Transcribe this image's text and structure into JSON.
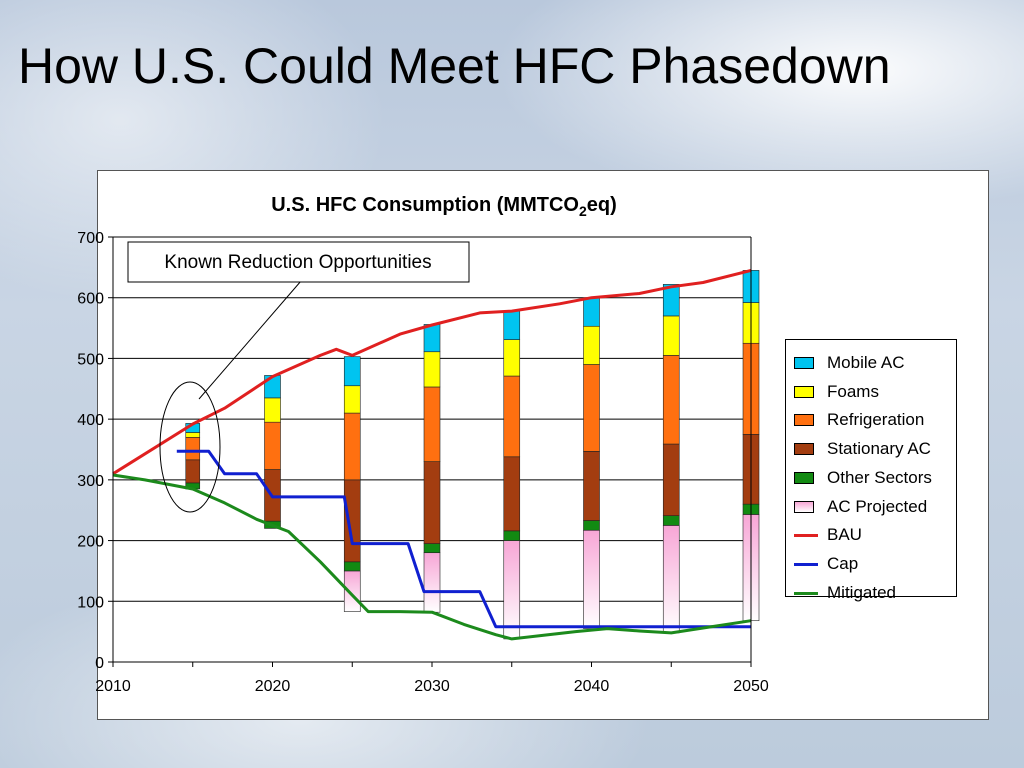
{
  "slide": {
    "title": "How U.S. Could Meet HFC Phasedown"
  },
  "chart_data": {
    "type": "bar",
    "title_main": "U.S. HFC Consumption (MMTCO",
    "title_sub": "2",
    "title_tail": "eq)",
    "annotation": "Known Reduction Opportunities",
    "xlim": [
      2010,
      2050
    ],
    "ylim": [
      0,
      700
    ],
    "x_ticks": [
      2010,
      2020,
      2030,
      2040,
      2050
    ],
    "y_ticks": [
      0,
      100,
      200,
      300,
      400,
      500,
      600,
      700
    ],
    "grid": true,
    "legend_position": "right",
    "stack_order": [
      "AC Projected",
      "Other Sectors",
      "Stationary AC",
      "Refrigeration",
      "Foams",
      "Mobile AC"
    ],
    "bars": [
      {
        "x": 2015,
        "base": 285,
        "AC Projected": 0,
        "Other Sectors": 10,
        "Stationary AC": 38,
        "Refrigeration": 37,
        "Foams": 8,
        "Mobile AC": 15
      },
      {
        "x": 2020,
        "base": 220,
        "AC Projected": 0,
        "Other Sectors": 12,
        "Stationary AC": 85,
        "Refrigeration": 78,
        "Foams": 40,
        "Mobile AC": 37
      },
      {
        "x": 2025,
        "base": 83,
        "AC Projected": 67,
        "Other Sectors": 15,
        "Stationary AC": 135,
        "Refrigeration": 110,
        "Foams": 45,
        "Mobile AC": 48
      },
      {
        "x": 2030,
        "base": 82,
        "AC Projected": 98,
        "Other Sectors": 15,
        "Stationary AC": 135,
        "Refrigeration": 123,
        "Foams": 58,
        "Mobile AC": 45
      },
      {
        "x": 2035,
        "base": 38,
        "AC Projected": 162,
        "Other Sectors": 16,
        "Stationary AC": 122,
        "Refrigeration": 133,
        "Foams": 60,
        "Mobile AC": 47
      },
      {
        "x": 2040,
        "base": 55,
        "AC Projected": 162,
        "Other Sectors": 16,
        "Stationary AC": 114,
        "Refrigeration": 143,
        "Foams": 63,
        "Mobile AC": 47
      },
      {
        "x": 2045,
        "base": 48,
        "AC Projected": 177,
        "Other Sectors": 16,
        "Stationary AC": 118,
        "Refrigeration": 146,
        "Foams": 65,
        "Mobile AC": 52
      },
      {
        "x": 2050,
        "base": 68,
        "AC Projected": 175,
        "Other Sectors": 17,
        "Stationary AC": 115,
        "Refrigeration": 150,
        "Foams": 67,
        "Mobile AC": 53
      }
    ],
    "series_colors": {
      "Mobile AC": "#00c4f0",
      "Foams": "#ffff00",
      "Refrigeration": "#ff7010",
      "Stationary AC": "#a33d10",
      "Other Sectors": "#128a12",
      "AC Projected": "#f7a6d6",
      "BAU": "#e02020",
      "Cap": "#1020d0",
      "Mitigated": "#1c8a1c"
    },
    "lines": [
      {
        "name": "BAU",
        "points": [
          [
            2010,
            310
          ],
          [
            2015,
            392
          ],
          [
            2017,
            418
          ],
          [
            2020,
            470
          ],
          [
            2023,
            505
          ],
          [
            2024,
            515
          ],
          [
            2025,
            505
          ],
          [
            2028,
            540
          ],
          [
            2030,
            555
          ],
          [
            2033,
            575
          ],
          [
            2035,
            578
          ],
          [
            2038,
            590
          ],
          [
            2040,
            600
          ],
          [
            2043,
            607
          ],
          [
            2045,
            618
          ],
          [
            2047,
            625
          ],
          [
            2050,
            645
          ]
        ]
      },
      {
        "name": "Cap",
        "points": [
          [
            2014,
            347
          ],
          [
            2016,
            347
          ],
          [
            2017,
            310
          ],
          [
            2019,
            310
          ],
          [
            2020,
            272
          ],
          [
            2023,
            272
          ],
          [
            2024.5,
            272
          ],
          [
            2025,
            195
          ],
          [
            2028.5,
            195
          ],
          [
            2029.5,
            116
          ],
          [
            2033,
            116
          ],
          [
            2034,
            58
          ],
          [
            2040,
            58
          ],
          [
            2050,
            58
          ]
        ]
      },
      {
        "name": "Mitigated",
        "points": [
          [
            2010,
            308
          ],
          [
            2012,
            300
          ],
          [
            2015,
            285
          ],
          [
            2017,
            262
          ],
          [
            2019,
            235
          ],
          [
            2021,
            215
          ],
          [
            2023,
            165
          ],
          [
            2025,
            110
          ],
          [
            2026,
            83
          ],
          [
            2028,
            83
          ],
          [
            2030,
            82
          ],
          [
            2032,
            62
          ],
          [
            2034,
            45
          ],
          [
            2035,
            38
          ],
          [
            2037,
            44
          ],
          [
            2039,
            50
          ],
          [
            2041,
            55
          ],
          [
            2043,
            51
          ],
          [
            2045,
            48
          ],
          [
            2047,
            56
          ],
          [
            2050,
            68
          ]
        ]
      }
    ],
    "legend": [
      "Mobile AC",
      "Foams",
      "Refrigeration",
      "Stationary AC",
      "Other Sectors",
      "AC Projected",
      "BAU",
      "Cap",
      "Mitigated"
    ]
  }
}
